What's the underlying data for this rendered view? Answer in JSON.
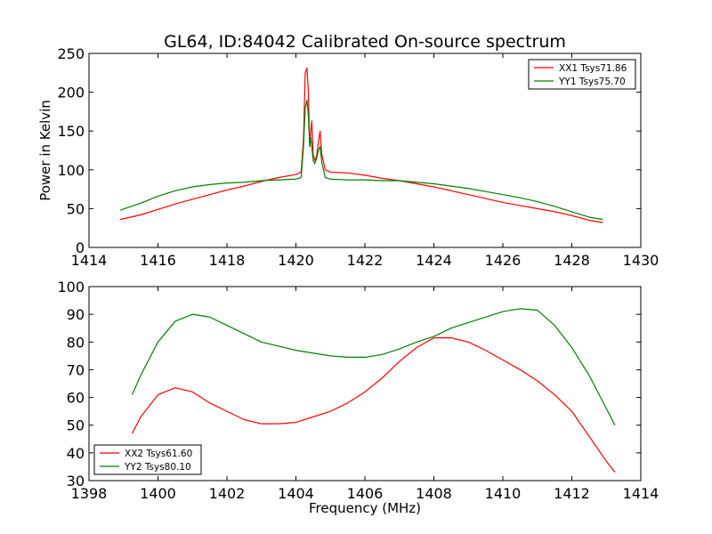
{
  "chart_data": [
    {
      "type": "line",
      "title": "GL64, ID:84042 Calibrated On-source spectrum",
      "xlabel": "",
      "ylabel": "Power in Kelvin",
      "xlim": [
        1414,
        1430
      ],
      "ylim": [
        0,
        250
      ],
      "xticks": [
        1414,
        1416,
        1418,
        1420,
        1422,
        1424,
        1426,
        1428,
        1430
      ],
      "yticks": [
        0,
        50,
        100,
        150,
        200,
        250
      ],
      "grid": false,
      "legend": "top-right",
      "series": [
        {
          "name": "XX1 Tsys71.86",
          "color": "#ff0000",
          "points": [
            [
              1414.9,
              36
            ],
            [
              1415.5,
              42
            ],
            [
              1416.0,
              49
            ],
            [
              1416.5,
              56
            ],
            [
              1417.0,
              62
            ],
            [
              1417.5,
              68
            ],
            [
              1418.0,
              74
            ],
            [
              1418.5,
              79
            ],
            [
              1419.0,
              85
            ],
            [
              1419.5,
              90
            ],
            [
              1420.0,
              94
            ],
            [
              1420.15,
              97
            ],
            [
              1420.22,
              140
            ],
            [
              1420.27,
              225
            ],
            [
              1420.32,
              231
            ],
            [
              1420.36,
              200
            ],
            [
              1420.4,
              130
            ],
            [
              1420.43,
              150
            ],
            [
              1420.46,
              163
            ],
            [
              1420.5,
              120
            ],
            [
              1420.55,
              112
            ],
            [
              1420.6,
              118
            ],
            [
              1420.65,
              135
            ],
            [
              1420.7,
              150
            ],
            [
              1420.75,
              120
            ],
            [
              1420.85,
              100
            ],
            [
              1421.0,
              97
            ],
            [
              1421.5,
              96
            ],
            [
              1422.0,
              93
            ],
            [
              1422.5,
              89
            ],
            [
              1423.0,
              86
            ],
            [
              1423.5,
              82
            ],
            [
              1424.0,
              78
            ],
            [
              1424.5,
              73
            ],
            [
              1425.0,
              68
            ],
            [
              1425.5,
              63
            ],
            [
              1426.0,
              58
            ],
            [
              1426.5,
              54
            ],
            [
              1427.0,
              50
            ],
            [
              1427.5,
              46
            ],
            [
              1428.0,
              41
            ],
            [
              1428.5,
              35
            ],
            [
              1428.9,
              32
            ]
          ]
        },
        {
          "name": "YY1 Tsys75.70",
          "color": "#008000",
          "points": [
            [
              1414.9,
              48
            ],
            [
              1415.5,
              57
            ],
            [
              1416.0,
              66
            ],
            [
              1416.5,
              73
            ],
            [
              1417.0,
              78
            ],
            [
              1417.5,
              81
            ],
            [
              1418.0,
              83
            ],
            [
              1418.5,
              84
            ],
            [
              1419.0,
              86
            ],
            [
              1419.5,
              87
            ],
            [
              1420.0,
              88
            ],
            [
              1420.15,
              90
            ],
            [
              1420.22,
              130
            ],
            [
              1420.27,
              180
            ],
            [
              1420.32,
              190
            ],
            [
              1420.36,
              170
            ],
            [
              1420.4,
              130
            ],
            [
              1420.43,
              142
            ],
            [
              1420.46,
              130
            ],
            [
              1420.5,
              112
            ],
            [
              1420.55,
              108
            ],
            [
              1420.6,
              115
            ],
            [
              1420.65,
              125
            ],
            [
              1420.7,
              130
            ],
            [
              1420.75,
              110
            ],
            [
              1420.85,
              90
            ],
            [
              1421.0,
              88
            ],
            [
              1421.5,
              87
            ],
            [
              1422.0,
              87
            ],
            [
              1422.5,
              86
            ],
            [
              1423.0,
              86
            ],
            [
              1423.5,
              84
            ],
            [
              1424.0,
              82
            ],
            [
              1424.5,
              79
            ],
            [
              1425.0,
              76
            ],
            [
              1425.5,
              72
            ],
            [
              1426.0,
              68
            ],
            [
              1426.5,
              64
            ],
            [
              1427.0,
              59
            ],
            [
              1427.5,
              53
            ],
            [
              1428.0,
              46
            ],
            [
              1428.5,
              39
            ],
            [
              1428.9,
              36
            ]
          ]
        }
      ]
    },
    {
      "type": "line",
      "title": "",
      "xlabel": "Frequency (MHz)",
      "ylabel": "",
      "xlim": [
        1398,
        1414
      ],
      "ylim": [
        30,
        100
      ],
      "xticks": [
        1398,
        1400,
        1402,
        1404,
        1406,
        1408,
        1410,
        1412,
        1414
      ],
      "yticks": [
        30,
        40,
        50,
        60,
        70,
        80,
        90,
        100
      ],
      "grid": false,
      "legend": "bottom-left",
      "series": [
        {
          "name": "XX2 Tsys61.60",
          "color": "#ff0000",
          "points": [
            [
              1399.25,
              47
            ],
            [
              1399.5,
              53
            ],
            [
              1400.0,
              61
            ],
            [
              1400.5,
              63.5
            ],
            [
              1401.0,
              62
            ],
            [
              1401.5,
              58
            ],
            [
              1402.0,
              55
            ],
            [
              1402.5,
              52
            ],
            [
              1403.0,
              50.5
            ],
            [
              1403.5,
              50.5
            ],
            [
              1404.0,
              51
            ],
            [
              1404.5,
              53
            ],
            [
              1405.0,
              55
            ],
            [
              1405.5,
              58
            ],
            [
              1406.0,
              62
            ],
            [
              1406.5,
              67
            ],
            [
              1407.0,
              73
            ],
            [
              1407.5,
              78
            ],
            [
              1408.0,
              81.5
            ],
            [
              1408.5,
              81.5
            ],
            [
              1409.0,
              80
            ],
            [
              1409.5,
              77
            ],
            [
              1410.0,
              73.5
            ],
            [
              1410.5,
              70
            ],
            [
              1411.0,
              66
            ],
            [
              1411.5,
              61
            ],
            [
              1412.0,
              55
            ],
            [
              1412.5,
              46
            ],
            [
              1413.0,
              37
            ],
            [
              1413.25,
              33
            ]
          ]
        },
        {
          "name": "YY2 Tsys80.10",
          "color": "#008000",
          "points": [
            [
              1399.25,
              61
            ],
            [
              1399.5,
              68
            ],
            [
              1400.0,
              80
            ],
            [
              1400.5,
              87.5
            ],
            [
              1401.0,
              90
            ],
            [
              1401.5,
              89
            ],
            [
              1402.0,
              86
            ],
            [
              1402.5,
              83
            ],
            [
              1403.0,
              80
            ],
            [
              1403.5,
              78.5
            ],
            [
              1404.0,
              77
            ],
            [
              1404.5,
              76
            ],
            [
              1405.0,
              75
            ],
            [
              1405.5,
              74.5
            ],
            [
              1406.0,
              74.5
            ],
            [
              1406.5,
              75.5
            ],
            [
              1407.0,
              77.5
            ],
            [
              1407.5,
              80
            ],
            [
              1408.0,
              82
            ],
            [
              1408.5,
              85
            ],
            [
              1409.0,
              87
            ],
            [
              1409.5,
              89
            ],
            [
              1410.0,
              91
            ],
            [
              1410.5,
              92
            ],
            [
              1411.0,
              91.5
            ],
            [
              1411.5,
              86
            ],
            [
              1412.0,
              78
            ],
            [
              1412.5,
              68
            ],
            [
              1413.0,
              56
            ],
            [
              1413.25,
              50
            ]
          ]
        }
      ]
    }
  ]
}
